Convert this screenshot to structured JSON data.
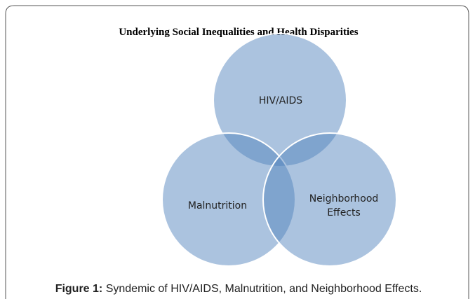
{
  "title": "Underlying Social Inequalities and Health Disparities",
  "nodes": [
    {
      "label_lines": [
        "HIV/AIDS"
      ]
    },
    {
      "label_lines": [
        "Malnutrition"
      ]
    },
    {
      "label_lines": [
        "Neighborhood",
        "Effects"
      ]
    }
  ],
  "caption": {
    "label": "Figure 1:",
    "text": "Syndemic of HIV/AIDS, Malnutrition, and Neighborhood Effects."
  }
}
